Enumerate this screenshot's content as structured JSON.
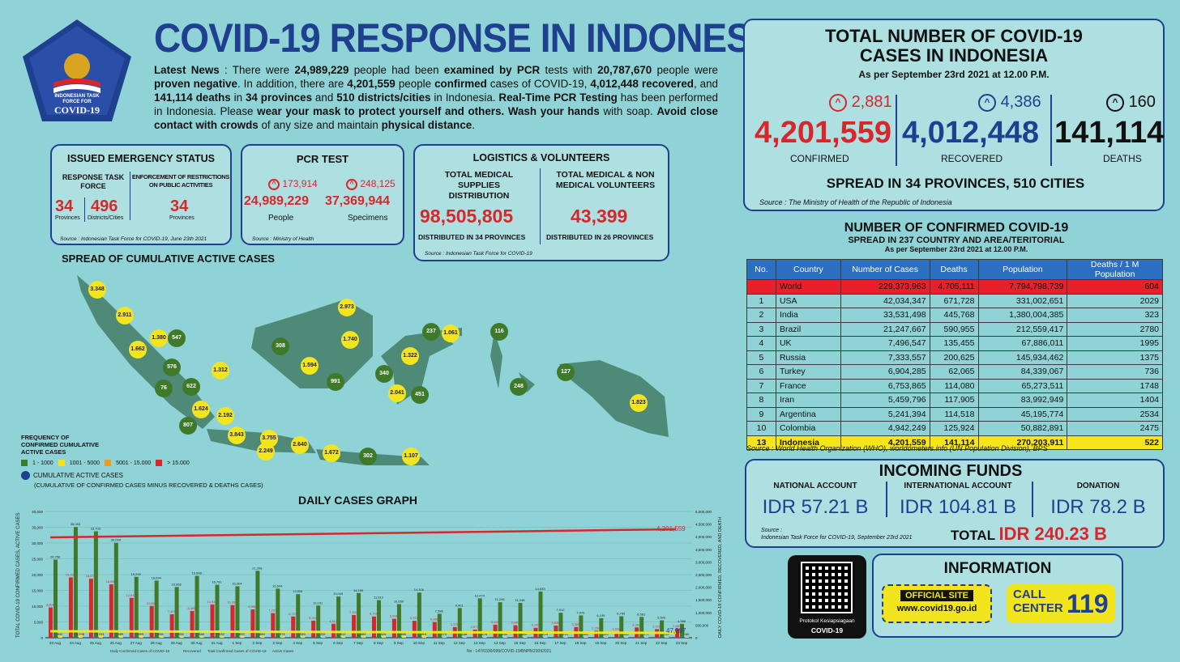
{
  "logo": {
    "line1": "INDONESIAN TASK",
    "line2": "FORCE FOR",
    "line3": "COVID-19"
  },
  "title": "COVID-19 RESPONSE IN INDONESIA",
  "news": {
    "p1": "Latest News",
    "p2": " : There were ",
    "p3": "24,989,229",
    "p4": " people had been ",
    "p5": "examined by PCR",
    "p6": " tests with ",
    "p7": "20,787,670",
    "p8": " people were ",
    "p9": "proven negative",
    "p10": ". In addition, there are ",
    "p11": "4,201,559",
    "p12": " people ",
    "p13": "confirmed",
    "p14": " cases of COVID-19, ",
    "p15": "4,012,448 recovered",
    "p16": ", and ",
    "p17": "141,114 deaths",
    "p18": " in ",
    "p19": "34 provinces",
    "p20": " and ",
    "p21": "510 districts/cities",
    "p22": " in Indonesia. ",
    "p23": "Real-Time PCR Testing",
    "p24": " has been performed in Indonesia. Please ",
    "p25": "wear your mask to protect yourself and others. Wash your hands",
    "p26": " with soap. ",
    "p27": "Avoid close contact with crowds",
    "p28": " of any size and maintain ",
    "p29": "physical distance",
    "p30": "."
  },
  "emergency": {
    "title": "ISSUED EMERGENCY STATUS",
    "col1": "RESPONSE TASK FORCE",
    "col2": "ENFORCEMENT OF RESTRICTIONS ON PUBLIC ACTIVITIES",
    "v1": "34",
    "l1": "Provinces",
    "v2": "496",
    "l2": "Districts/Cities",
    "v3": "34",
    "l3": "Provinces",
    "source": "Source : Indonesian Task Force for COVID-19, June 23th 2021"
  },
  "pcr": {
    "title": "PCR TEST",
    "inc1": "173,914",
    "inc2": "248,125",
    "v1": "24,989,229",
    "l1": "People",
    "v2": "37,369,944",
    "l2": "Specimens",
    "source": "Source : Ministry of Health"
  },
  "logistics": {
    "title": "LOGISTICS & VOLUNTEERS",
    "h1": "TOTAL MEDICAL SUPPLIES DISTRIBUTION",
    "h2": "TOTAL MEDICAL & NON MEDICAL VOLUNTEERS",
    "v1": "98,505,805",
    "v2": "43,399",
    "f1": "DISTRIBUTED IN 34 PROVINCES",
    "f2": "DISTRIBUTED IN 26 PROVINCES",
    "source": "Source : Indonesian Task Force for COVID-19"
  },
  "map": {
    "title": "SPREAD OF CUMULATIVE ACTIVE CASES",
    "legend_title": "FREQUENCY OF CONFIRMED CUMULATIVE ACTIVE CASES",
    "legend": [
      "1 - 1000",
      "1001 - 5000",
      "5001 - 15.000",
      "> 15.000"
    ],
    "legend2": "CUMULATIVE ACTIVE CASES",
    "legend3": "(CUMULATIVE OF CONFIRMED CASES MINUS RECOVERED & DEATHS CASES)",
    "dots": [
      [
        "3.348",
        "y"
      ],
      [
        "2.911",
        "y"
      ],
      [
        "1.380",
        "y"
      ],
      [
        "547",
        "g"
      ],
      [
        "1.662",
        "y"
      ],
      [
        "576",
        "g"
      ],
      [
        "76",
        "g"
      ],
      [
        "622",
        "g"
      ],
      [
        "1.312",
        "y"
      ],
      [
        "1.624",
        "y"
      ],
      [
        "807",
        "g"
      ],
      [
        "2.192",
        "y"
      ],
      [
        "3.843",
        "y"
      ],
      [
        "3.755",
        "y"
      ],
      [
        "2.249",
        "y"
      ],
      [
        "2.640",
        "y"
      ],
      [
        "1.672",
        "y"
      ],
      [
        "302",
        "g"
      ],
      [
        "1.107",
        "y"
      ],
      [
        "308",
        "g"
      ],
      [
        "1.594",
        "y"
      ],
      [
        "2.973",
        "y"
      ],
      [
        "1.740",
        "y"
      ],
      [
        "991",
        "g"
      ],
      [
        "237",
        "g"
      ],
      [
        "1.061",
        "y"
      ],
      [
        "116",
        "g"
      ],
      [
        "1.322",
        "y"
      ],
      [
        "340",
        "g"
      ],
      [
        "2.041",
        "y"
      ],
      [
        "451",
        "g"
      ],
      [
        "248",
        "g"
      ],
      [
        "127",
        "g"
      ],
      [
        "1.823",
        "y"
      ]
    ]
  },
  "summary": {
    "title1": "TOTAL NUMBER OF COVID-19",
    "title2": "CASES IN INDONESIA",
    "asof": "As per September 23rd 2021 at 12.00 P.M.",
    "inc1": "2,881",
    "inc2": "4,386",
    "inc3": "160",
    "v1": "4,201,559",
    "v2": "4,012,448",
    "v3": "141,114",
    "l1": "CONFIRMED",
    "l2": "RECOVERED",
    "l3": "DEATHS",
    "spread": "SPREAD IN 34 PROVINCES, 510 CITIES",
    "source": "Source : The Ministry of Health of the Republic of Indonesia"
  },
  "world": {
    "title": "NUMBER OF CONFIRMED COVID-19",
    "sub": "SPREAD IN 237 COUNTRY AND AREA/TERITORIAL",
    "asof": "As per September 23rd 2021 at 12.00 P.M.",
    "headers": [
      "No.",
      "Country",
      "Number of Cases",
      "Deaths",
      "Population",
      "Deaths / 1 M Population"
    ],
    "rows": [
      [
        "",
        "World",
        "229,373,963",
        "4,705,111",
        "7,794,798,739",
        "604"
      ],
      [
        "1",
        "USA",
        "42,034,347",
        "671,728",
        "331,002,651",
        "2029"
      ],
      [
        "2",
        "India",
        "33,531,498",
        "445,768",
        "1,380,004,385",
        "323"
      ],
      [
        "3",
        "Brazil",
        "21,247,667",
        "590,955",
        "212,559,417",
        "2780"
      ],
      [
        "4",
        "UK",
        "7,496,547",
        "135,455",
        "67,886,011",
        "1995"
      ],
      [
        "5",
        "Russia",
        "7,333,557",
        "200,625",
        "145,934,462",
        "1375"
      ],
      [
        "6",
        "Turkey",
        "6,904,285",
        "62,065",
        "84,339,067",
        "736"
      ],
      [
        "7",
        "France",
        "6,753,865",
        "114,080",
        "65,273,511",
        "1748"
      ],
      [
        "8",
        "Iran",
        "5,459,796",
        "117,905",
        "83,992,949",
        "1404"
      ],
      [
        "9",
        "Argentina",
        "5,241,394",
        "114,518",
        "45,195,774",
        "2534"
      ],
      [
        "10",
        "Colombia",
        "4,942,249",
        "125,924",
        "50,882,891",
        "2475"
      ],
      [
        "13",
        "Indonesia",
        "4,201,559",
        "141,114",
        "270,203,911",
        "522"
      ]
    ],
    "source": "Source : World Health Organization (WHO), worldometers.info (UN Population Division), BPS"
  },
  "funds": {
    "title": "INCOMING FUNDS",
    "h1": "NATIONAL ACCOUNT",
    "h2": "INTERNATIONAL ACCOUNT",
    "h3": "DONATION",
    "v1": "IDR 57.21 B",
    "v2": "IDR 104.81 B",
    "v3": "IDR 78.2 B",
    "source1": "Source :",
    "source2": "Indonesian Task Force for COVID-19, September 23rd 2021",
    "total_label": "TOTAL",
    "total": "IDR 240.23 B"
  },
  "qr": {
    "l1": "Protokol Kesiapsiagaan",
    "l2": "COVID-19"
  },
  "info": {
    "title": "INFORMATION",
    "site1": "OFFICIAL SITE",
    "site2": "www.covid19.go.id",
    "call1": "CALL",
    "call2": "CENTER",
    "call3": "119"
  },
  "chart_title": "DAILY CASES GRAPH",
  "chart_data": {
    "type": "bar",
    "ylabel": "TOTAL COVID-19 CONFIRMED CASES, ACTIVE CASES",
    "ylabel2": "DAILY COVID-19 CONFIRMED, RECOVERED, AND DEATH",
    "categories": [
      "23 Aug",
      "24 Aug",
      "25 Aug",
      "26 Aug",
      "27 Aug",
      "28 Aug",
      "29 Aug",
      "30 Aug",
      "31 Aug",
      "1 Sep",
      "2 Sep",
      "3 Sep",
      "4 Sep",
      "5 Sep",
      "6 Sep",
      "7 Sep",
      "8 Sep",
      "9 Sep",
      "10 Sep",
      "11 Sep",
      "12 Sep",
      "13 Sep",
      "14 Sep",
      "15 Sep",
      "16 Sep",
      "17 Sep",
      "18 Sep",
      "19 Sep",
      "20 Sep",
      "21 Sep",
      "22 Sep",
      "23 Sep"
    ],
    "yticks": [
      "40,000",
      "35,000",
      "30,000",
      "25,000",
      "20,000",
      "15,000",
      "10,000",
      "5,000",
      "0"
    ],
    "y2ticks": [
      "5,000,000",
      "4,500,000",
      "4,000,000",
      "3,500,000",
      "3,000,000",
      "2,500,000",
      "2,000,000",
      "1,500,000",
      "1,000,000",
      "500,000",
      "0"
    ],
    "ylim": [
      0,
      40000
    ],
    "series": [
      {
        "name": "Daily Confirmed Cases of COVID-19",
        "color": "#d9262b",
        "values": [
          9604,
          19106,
          18671,
          16899,
          12618,
          10050,
          7427,
          8485,
          10534,
          10337,
          8955,
          7797,
          6727,
          5403,
          4413,
          7201,
          6731,
          5990,
          5376,
          4965,
          3379,
          2577,
          4128,
          3948,
          3145,
          3830,
          3385,
          2234,
          1932,
          3263,
          2720,
          2881
        ]
      },
      {
        "name": "Recovered",
        "color": "#3f7a2a",
        "values": [
          24758,
          35083,
          33703,
          30099,
          19290,
          18094,
          16068,
          19598,
          16781,
          16304,
          21208,
          15544,
          13806,
          10191,
          13049,
          14159,
          11912,
          10650,
          14306,
          7586,
          9401,
          12474,
          11246,
          11046,
          14633,
          7912,
          7076,
          6199,
          6799,
          6581,
          5500,
          4386
        ]
      },
      {
        "name": "Death",
        "color": "#f2e51d",
        "values": [
          842,
          1038,
          1041,
          889,
          899,
          691,
          551,
          568,
          532,
          653,
          680,
          574,
          539,
          292,
          612,
          683,
          626,
          685,
          915,
          270,
          188,
          276,
          250,
          267,
          219,
          219,
          185,
          145,
          166,
          171,
          149,
          160
        ]
      }
    ],
    "line": {
      "name": "Total Confirmed Cases of COVID-19",
      "label": "4,201,559"
    },
    "active_label": "47,997"
  },
  "footer": {
    "note": "No : 147/0330/099/COVID-19/BNPB/23092021",
    "legend1": "Daily Confirmed Cases of COVID-19",
    "legend2": "Recovered",
    "legend3": "Total Confirmed Cases of COVID-19",
    "legend4": "Active Cases"
  }
}
